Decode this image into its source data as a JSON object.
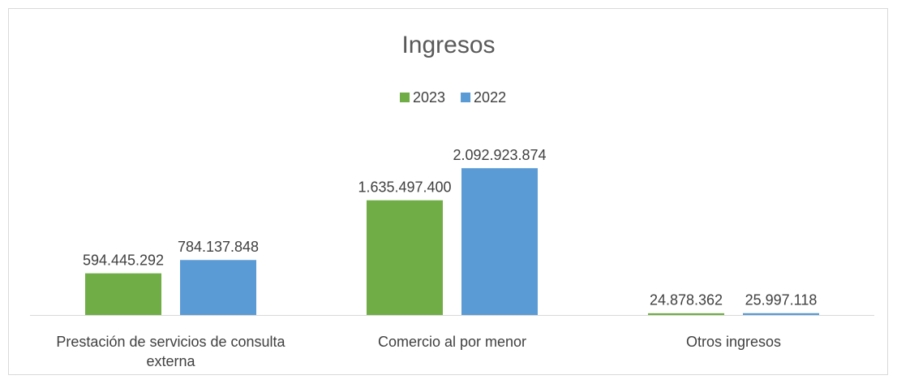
{
  "chart_data": {
    "type": "bar",
    "title": "Ingresos",
    "categories": [
      "Prestación de servicios de consulta externa",
      "Comercio al por menor",
      "Otros ingresos"
    ],
    "series": [
      {
        "name": "2023",
        "color": "#70ad47",
        "values": [
          594445292,
          1635497400,
          24878362
        ],
        "value_labels": [
          "594.445.292",
          "1.635.497.400",
          "24.878.362"
        ]
      },
      {
        "name": "2022",
        "color": "#5b9bd5",
        "values": [
          784137848,
          2092923874,
          25997118
        ],
        "value_labels": [
          "784.137.848",
          "2.092.923.874",
          "25.997.118"
        ]
      }
    ],
    "ylim": [
      0,
      2500000000
    ],
    "legend": "top"
  }
}
